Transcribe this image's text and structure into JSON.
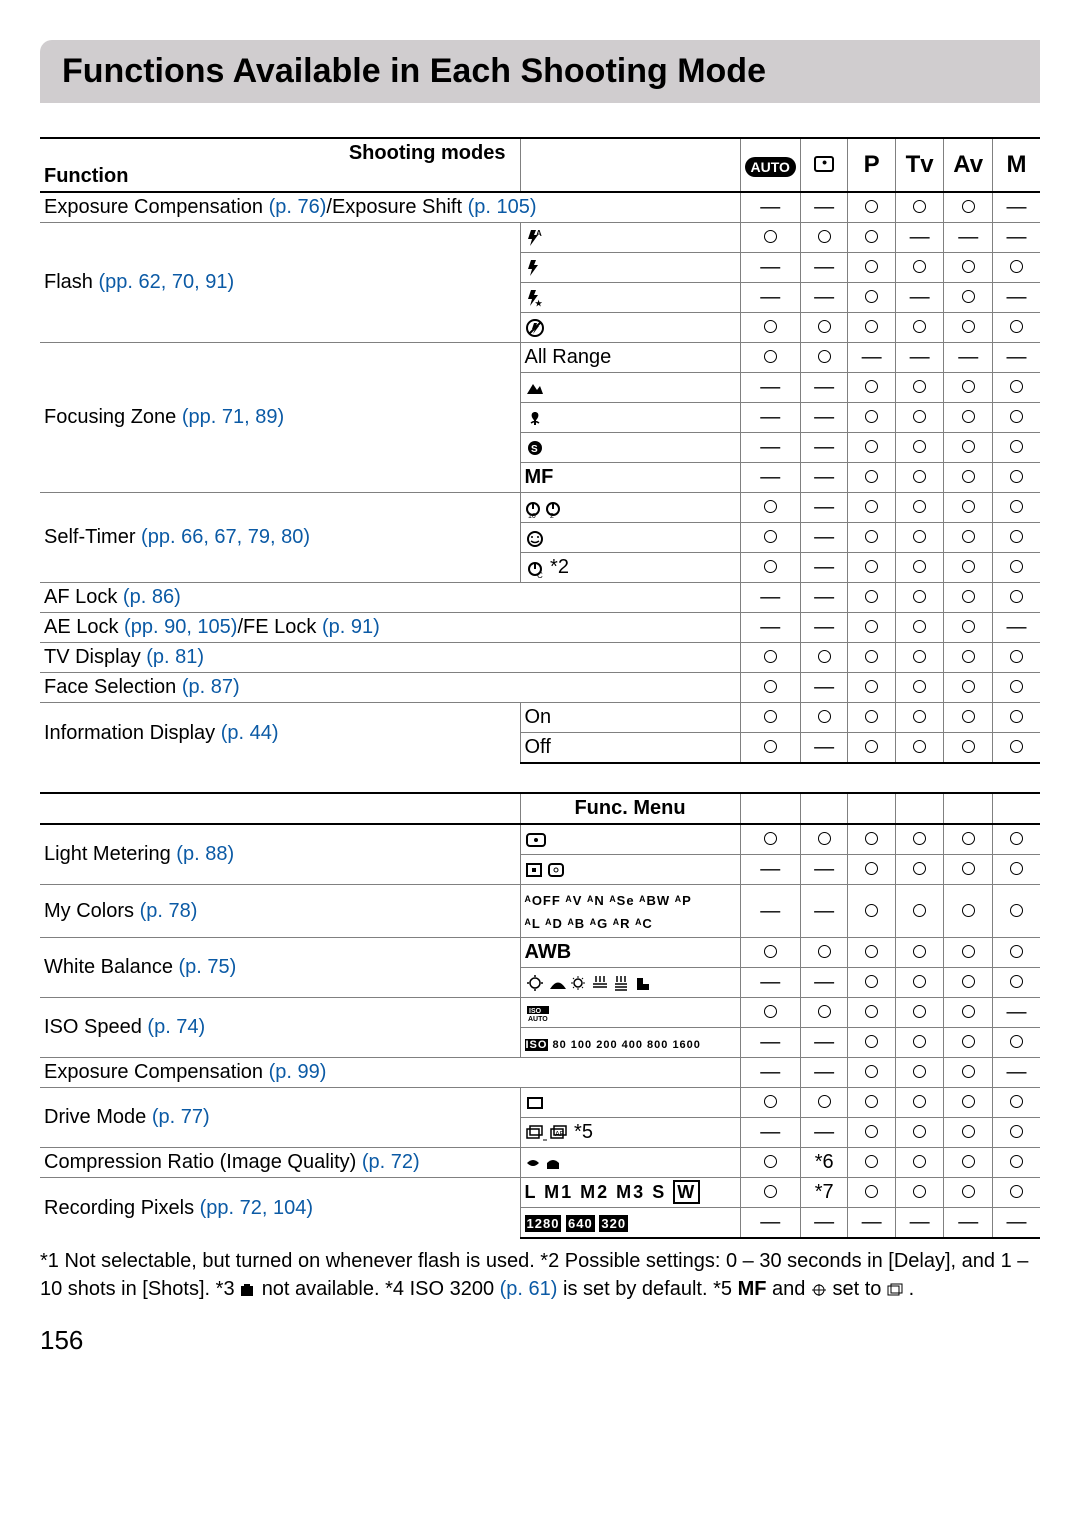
{
  "title": "Functions Available in Each Shooting Mode",
  "header": {
    "shooting_modes_label": "Shooting modes",
    "function_label": "Function",
    "func_menu_label": "Func. Menu",
    "modes": [
      "AUTO",
      "🙂",
      "P",
      "Tv",
      "Av",
      "M"
    ]
  },
  "o": "O",
  "d": "—",
  "star6": "*6",
  "star7": "*7",
  "rows1": [
    {
      "fn": "Exposure Compensation ",
      "fl": "(p. 76)",
      "ft": "/Exposure Shift ",
      "fl2": "(p. 105)",
      "span": 2,
      "c": [
        "—",
        "—",
        "O",
        "O",
        "O",
        "—"
      ]
    },
    {
      "fn": "Flash ",
      "fl": "(pp. 62, 70, 91)",
      "rowspan": 4,
      "opt_svg": "flash-auto",
      "c": [
        "O",
        "O",
        "O",
        "—",
        "—",
        "—"
      ]
    },
    {
      "opt_svg": "flash-on",
      "c": [
        "—",
        "—",
        "O",
        "O",
        "O",
        "O"
      ]
    },
    {
      "opt_svg": "flash-slow",
      "c": [
        "—",
        "—",
        "O",
        "—",
        "O",
        "—"
      ]
    },
    {
      "opt_svg": "flash-off",
      "c": [
        "O",
        "O",
        "O",
        "O",
        "O",
        "O"
      ]
    },
    {
      "fn": "Focusing Zone ",
      "fl": "(pp. 71, 89)",
      "rowspan": 5,
      "opt": "All Range",
      "c": [
        "O",
        "O",
        "—",
        "—",
        "—",
        "—"
      ]
    },
    {
      "opt_svg": "mountain",
      "c": [
        "—",
        "—",
        "O",
        "O",
        "O",
        "O"
      ]
    },
    {
      "opt_svg": "macro",
      "c": [
        "—",
        "—",
        "O",
        "O",
        "O",
        "O"
      ]
    },
    {
      "opt_svg": "super-macro",
      "c": [
        "—",
        "—",
        "O",
        "O",
        "O",
        "O"
      ]
    },
    {
      "opt": "MF",
      "opt_bold": true,
      "c": [
        "—",
        "—",
        "O",
        "O",
        "O",
        "O"
      ]
    },
    {
      "fn": "Self-Timer ",
      "fl": "(pp. 66, 67, 79, 80)",
      "rowspan": 3,
      "opt_svg": "timer-10-2",
      "c": [
        "O",
        "—",
        "O",
        "O",
        "O",
        "O"
      ]
    },
    {
      "opt_svg": "timer-face",
      "c": [
        "O",
        "—",
        "O",
        "O",
        "O",
        "O"
      ]
    },
    {
      "opt_svg": "timer-custom",
      "opt_suffix": " *2",
      "c": [
        "O",
        "—",
        "O",
        "O",
        "O",
        "O"
      ]
    },
    {
      "fn": "AF Lock ",
      "fl": "(p. 86)",
      "span": 2,
      "c": [
        "—",
        "—",
        "O",
        "O",
        "O",
        "O"
      ]
    },
    {
      "fn": "AE Lock ",
      "fl": "(pp. 90, 105)",
      "ft": "/FE Lock ",
      "fl2": "(p. 91)",
      "span": 2,
      "c": [
        "—",
        "—",
        "O",
        "O",
        "O",
        "—"
      ]
    },
    {
      "fn": "TV Display ",
      "fl": "(p. 81)",
      "span": 2,
      "c": [
        "O",
        "O",
        "O",
        "O",
        "O",
        "O"
      ]
    },
    {
      "fn": "Face Selection ",
      "fl": "(p. 87)",
      "span": 2,
      "c": [
        "O",
        "—",
        "O",
        "O",
        "O",
        "O"
      ]
    },
    {
      "fn": "Information Display ",
      "fl": "(p. 44)",
      "rowspan": 2,
      "opt": "On",
      "c": [
        "O",
        "O",
        "O",
        "O",
        "O",
        "O"
      ]
    },
    {
      "opt": "Off",
      "c": [
        "O",
        "—",
        "O",
        "O",
        "O",
        "O"
      ]
    }
  ],
  "rows2": [
    {
      "fn": "Light Metering ",
      "fl": "(p. 88)",
      "rowspan": 2,
      "opt_svg": "meter-eval",
      "c": [
        "O",
        "O",
        "O",
        "O",
        "O",
        "O"
      ]
    },
    {
      "opt_svg": "meter-partial",
      "c": [
        "—",
        "—",
        "O",
        "O",
        "O",
        "O"
      ]
    },
    {
      "fn": "My Colors ",
      "fl": "(p. 78)",
      "opt_svg": "mycolors",
      "c": [
        "—",
        "—",
        "O",
        "O",
        "O",
        "O"
      ]
    },
    {
      "fn": "White Balance ",
      "fl": "(p. 75)",
      "rowspan": 2,
      "opt": "AWB",
      "opt_bold": true,
      "c": [
        "O",
        "O",
        "O",
        "O",
        "O",
        "O"
      ]
    },
    {
      "opt_svg": "wb-set",
      "c": [
        "—",
        "—",
        "O",
        "O",
        "O",
        "O"
      ]
    },
    {
      "fn": "ISO Speed ",
      "fl": "(p. 74)",
      "rowspan": 2,
      "opt_svg": "iso-auto",
      "c": [
        "O",
        "O",
        "O",
        "O",
        "O",
        "—"
      ]
    },
    {
      "opt_svg": "iso-list",
      "c": [
        "—",
        "—",
        "O",
        "O",
        "O",
        "O"
      ]
    },
    {
      "fn": "Exposure Compensation ",
      "fl": "(p. 99)",
      "span": 2,
      "c": [
        "—",
        "—",
        "O",
        "O",
        "O",
        "—"
      ]
    },
    {
      "fn": "Drive Mode ",
      "fl": "(p. 77)",
      "rowspan": 2,
      "opt_svg": "single-shot",
      "c": [
        "O",
        "O",
        "O",
        "O",
        "O",
        "O"
      ]
    },
    {
      "opt_svg": "continuous",
      "opt_suffix": " *5",
      "c": [
        "—",
        "—",
        "O",
        "O",
        "O",
        "O"
      ]
    },
    {
      "fn": "Compression Ratio (Image Quality) ",
      "fl": "(p. 72)",
      "opt_svg": "quality",
      "c": [
        "O",
        "*6",
        "O",
        "O",
        "O",
        "O"
      ]
    },
    {
      "fn": "Recording Pixels ",
      "fl": "(pp. 72, 104)",
      "rowspan": 2,
      "opt_svg": "rec-pixels",
      "c": [
        "O",
        "*7",
        "O",
        "O",
        "O",
        "O"
      ]
    },
    {
      "opt_svg": "movie-res",
      "c": [
        "—",
        "—",
        "—",
        "—",
        "—",
        "—"
      ]
    }
  ],
  "footnotes": {
    "t1": "*1 Not selectable, but turned on whenever flash is used. *2 Possible settings: 0 – 30 seconds in [Delay], and 1 – 10 shots in [Shots]. *3 ",
    "t2": " not available. *4 ISO 3200 ",
    "l1": "(p. 61)",
    "t3": " is set by default. *5 ",
    "mf": "MF",
    "t4": " and ",
    "t5": " set to ",
    "t6": " ."
  },
  "page_number": "156"
}
